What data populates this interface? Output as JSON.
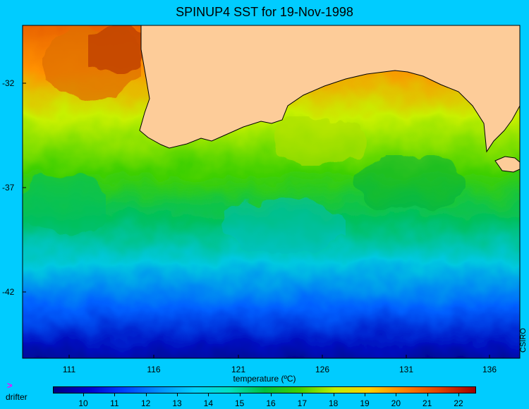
{
  "title": "SPINUP4 SST for 19-Nov-1998",
  "x_axis": {
    "ticks": [
      "111",
      "116",
      "121",
      "126",
      "131",
      "136"
    ],
    "label": "temperature (ºC)"
  },
  "y_axis": {
    "ticks": [
      "-32",
      "-37",
      "-42"
    ]
  },
  "credit": "CSIRO",
  "legend": {
    "drifter_label": "drifter",
    "drifter_icon": "drifter-marker-icon",
    "drifter_color": "#ff00ff"
  },
  "colorbar": {
    "ticks": [
      "10",
      "11",
      "12",
      "13",
      "14",
      "15",
      "16",
      "17",
      "18",
      "19",
      "20",
      "21",
      "22"
    ],
    "colors": [
      "#000080",
      "#0000cc",
      "#0040ff",
      "#0090ff",
      "#00d0ff",
      "#00e0c0",
      "#00c040",
      "#40d000",
      "#c0f000",
      "#ffd000",
      "#ff8000",
      "#e04000",
      "#a00000"
    ]
  },
  "colors": {
    "land": "#fdcc99",
    "background": "#00ccff",
    "coast": "#000000"
  }
}
